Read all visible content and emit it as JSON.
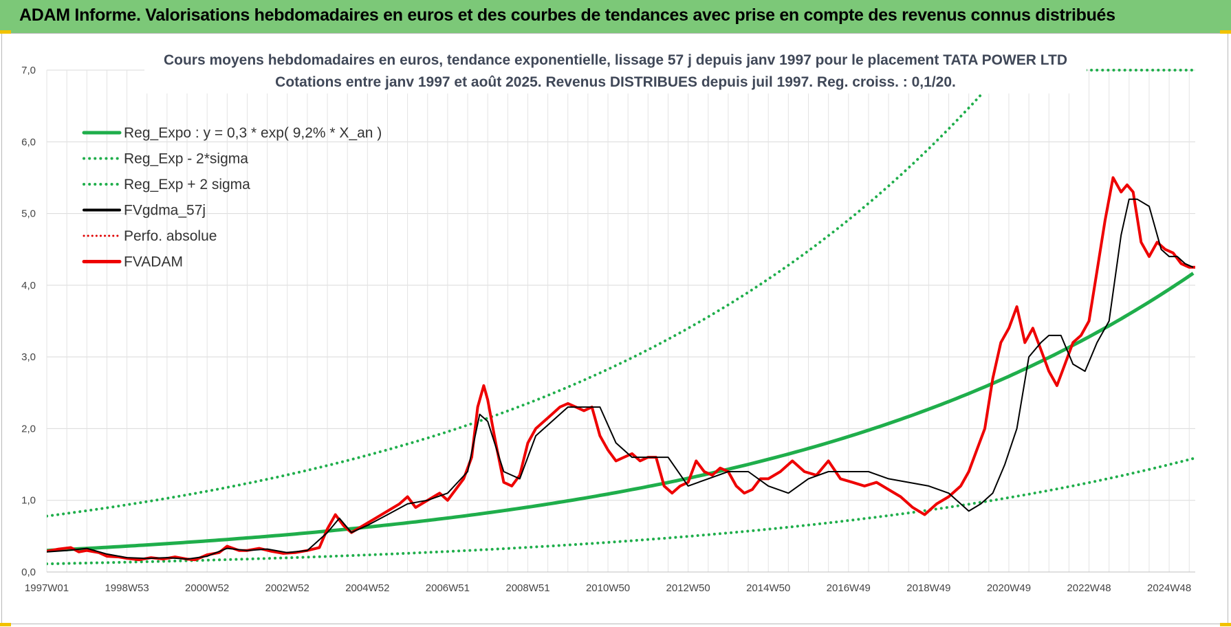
{
  "banner": {
    "title": "ADAM Informe. Valorisations hebdomadaires en euros et des courbes de tendances avec prise en compte des revenus connus distribués"
  },
  "chart_data": {
    "type": "line",
    "title_line1": "Cours moyens hebdomadaires en euros, tendance exponentielle, lissage 57 j depuis janv 1997 pour le placement TATA POWER LTD",
    "title_line2": "Cotations entre janv 1997 et août 2025. Revenus DISTRIBUES depuis juil 1997. Reg. croiss. : 0,1/20.",
    "xlabel": "",
    "ylabel": "",
    "xlim": [
      1997.0,
      2025.65
    ],
    "ylim": [
      0,
      7
    ],
    "grid": true,
    "legend_position": "top-left",
    "yticks": [
      "0,0",
      "1,0",
      "2,0",
      "3,0",
      "4,0",
      "5,0",
      "6,0",
      "7,0"
    ],
    "xticks": [
      {
        "label": "1997W01",
        "x": 1997.0
      },
      {
        "label": "1998W53",
        "x": 1999.0
      },
      {
        "label": "2000W52",
        "x": 2001.0
      },
      {
        "label": "2002W52",
        "x": 2003.0
      },
      {
        "label": "2004W52",
        "x": 2005.0
      },
      {
        "label": "2006W51",
        "x": 2007.0
      },
      {
        "label": "2008W51",
        "x": 2009.0
      },
      {
        "label": "2010W50",
        "x": 2011.0
      },
      {
        "label": "2012W50",
        "x": 2013.0
      },
      {
        "label": "2014W50",
        "x": 2015.0
      },
      {
        "label": "2016W49",
        "x": 2017.0
      },
      {
        "label": "2018W49",
        "x": 2019.0
      },
      {
        "label": "2020W49",
        "x": 2021.0
      },
      {
        "label": "2022W48",
        "x": 2023.0
      },
      {
        "label": "2024W48",
        "x": 2025.0
      }
    ],
    "regression": {
      "a": 0.3,
      "rate": 0.092,
      "lower_factor": 0.38,
      "upper_factor": 2.6
    },
    "series": [
      {
        "name": "Reg_Expo : y = 0,3 * exp( 9,2% *  X_an )",
        "color": "#1fae4b",
        "style": "solid"
      },
      {
        "name": "Reg_Exp - 2*sigma",
        "color": "#1fae4b",
        "style": "dotted"
      },
      {
        "name": "Reg_Exp + 2 sigma",
        "color": "#1fae4b",
        "style": "dotted"
      },
      {
        "name": "FVgdma_57j",
        "color": "#000000",
        "style": "solid",
        "x": [
          1997.0,
          1997.5,
          1998.0,
          1998.5,
          1999.0,
          1999.5,
          2000.0,
          2000.5,
          2001.0,
          2001.5,
          2002.0,
          2002.5,
          2003.0,
          2003.5,
          2004.0,
          2004.3,
          2004.6,
          2005.0,
          2005.5,
          2006.0,
          2006.5,
          2007.0,
          2007.5,
          2007.8,
          2008.0,
          2008.4,
          2008.8,
          2009.2,
          2009.6,
          2010.0,
          2010.4,
          2010.8,
          2011.2,
          2011.6,
          2012.0,
          2012.5,
          2013.0,
          2013.5,
          2014.0,
          2014.5,
          2015.0,
          2015.5,
          2016.0,
          2016.5,
          2017.0,
          2017.5,
          2018.0,
          2018.5,
          2019.0,
          2019.5,
          2020.0,
          2020.3,
          2020.6,
          2020.9,
          2021.2,
          2021.5,
          2021.8,
          2022.0,
          2022.3,
          2022.6,
          2022.9,
          2023.2,
          2023.5,
          2023.8,
          2024.0,
          2024.2,
          2024.5,
          2024.8,
          2025.0,
          2025.2,
          2025.4,
          2025.6
        ],
        "y": [
          0.28,
          0.3,
          0.33,
          0.25,
          0.2,
          0.19,
          0.2,
          0.18,
          0.22,
          0.33,
          0.3,
          0.32,
          0.27,
          0.3,
          0.55,
          0.75,
          0.55,
          0.65,
          0.8,
          0.95,
          1.0,
          1.1,
          1.4,
          2.2,
          2.1,
          1.4,
          1.3,
          1.9,
          2.1,
          2.3,
          2.3,
          2.3,
          1.8,
          1.6,
          1.6,
          1.6,
          1.2,
          1.3,
          1.4,
          1.4,
          1.2,
          1.1,
          1.3,
          1.4,
          1.4,
          1.4,
          1.3,
          1.25,
          1.2,
          1.1,
          0.85,
          0.95,
          1.1,
          1.5,
          2.0,
          3.0,
          3.2,
          3.3,
          3.3,
          2.9,
          2.8,
          3.2,
          3.5,
          4.7,
          5.2,
          5.2,
          5.1,
          4.5,
          4.4,
          4.4,
          4.3,
          4.25
        ]
      },
      {
        "name": "Perfo. absolue",
        "color": "#e00000",
        "style": "dotted"
      },
      {
        "name": "FVADAM",
        "color": "#ee0000",
        "style": "solid",
        "x": [
          1997.0,
          1997.3,
          1997.6,
          1997.8,
          1998.0,
          1998.3,
          1998.5,
          1998.8,
          1999.0,
          1999.3,
          1999.6,
          1999.9,
          2000.2,
          2000.5,
          2000.7,
          2001.0,
          2001.3,
          2001.5,
          2001.8,
          2002.0,
          2002.3,
          2002.6,
          2002.9,
          2003.2,
          2003.5,
          2003.8,
          2004.0,
          2004.2,
          2004.4,
          2004.6,
          2004.9,
          2005.2,
          2005.5,
          2005.8,
          2006.0,
          2006.2,
          2006.5,
          2006.8,
          2007.0,
          2007.2,
          2007.4,
          2007.6,
          2007.75,
          2007.9,
          2008.0,
          2008.2,
          2008.4,
          2008.6,
          2008.8,
          2009.0,
          2009.2,
          2009.4,
          2009.6,
          2009.8,
          2010.0,
          2010.2,
          2010.4,
          2010.6,
          2010.8,
          2011.0,
          2011.2,
          2011.4,
          2011.6,
          2011.8,
          2012.0,
          2012.2,
          2012.4,
          2012.6,
          2012.8,
          2013.0,
          2013.2,
          2013.4,
          2013.6,
          2013.8,
          2014.0,
          2014.2,
          2014.4,
          2014.6,
          2014.8,
          2015.0,
          2015.3,
          2015.6,
          2015.9,
          2016.2,
          2016.5,
          2016.8,
          2017.1,
          2017.4,
          2017.7,
          2018.0,
          2018.3,
          2018.6,
          2018.9,
          2019.2,
          2019.5,
          2019.8,
          2020.0,
          2020.2,
          2020.4,
          2020.6,
          2020.8,
          2021.0,
          2021.2,
          2021.4,
          2021.5,
          2021.6,
          2021.8,
          2022.0,
          2022.2,
          2022.4,
          2022.6,
          2022.8,
          2023.0,
          2023.2,
          2023.4,
          2023.6,
          2023.8,
          2023.95,
          2024.1,
          2024.3,
          2024.5,
          2024.7,
          2024.9,
          2025.1,
          2025.3,
          2025.5,
          2025.65
        ],
        "y": [
          0.29,
          0.32,
          0.34,
          0.28,
          0.3,
          0.27,
          0.22,
          0.21,
          0.19,
          0.17,
          0.2,
          0.18,
          0.21,
          0.18,
          0.17,
          0.24,
          0.27,
          0.36,
          0.3,
          0.3,
          0.33,
          0.29,
          0.26,
          0.27,
          0.3,
          0.34,
          0.6,
          0.8,
          0.65,
          0.55,
          0.65,
          0.75,
          0.85,
          0.95,
          1.05,
          0.9,
          1.0,
          1.1,
          1.0,
          1.15,
          1.3,
          1.6,
          2.3,
          2.6,
          2.4,
          1.8,
          1.25,
          1.2,
          1.35,
          1.8,
          2.0,
          2.1,
          2.2,
          2.3,
          2.35,
          2.3,
          2.25,
          2.3,
          1.9,
          1.7,
          1.55,
          1.6,
          1.65,
          1.55,
          1.6,
          1.6,
          1.2,
          1.1,
          1.2,
          1.25,
          1.55,
          1.4,
          1.35,
          1.45,
          1.4,
          1.2,
          1.1,
          1.15,
          1.3,
          1.3,
          1.4,
          1.55,
          1.4,
          1.35,
          1.55,
          1.3,
          1.25,
          1.2,
          1.25,
          1.15,
          1.05,
          0.9,
          0.8,
          0.95,
          1.05,
          1.2,
          1.4,
          1.7,
          2.0,
          2.7,
          3.2,
          3.4,
          3.7,
          3.2,
          3.3,
          3.4,
          3.1,
          2.8,
          2.6,
          2.9,
          3.2,
          3.3,
          3.5,
          4.2,
          4.9,
          5.5,
          5.3,
          5.4,
          5.3,
          4.6,
          4.4,
          4.6,
          4.5,
          4.45,
          4.3,
          4.25,
          4.25
        ]
      }
    ]
  }
}
